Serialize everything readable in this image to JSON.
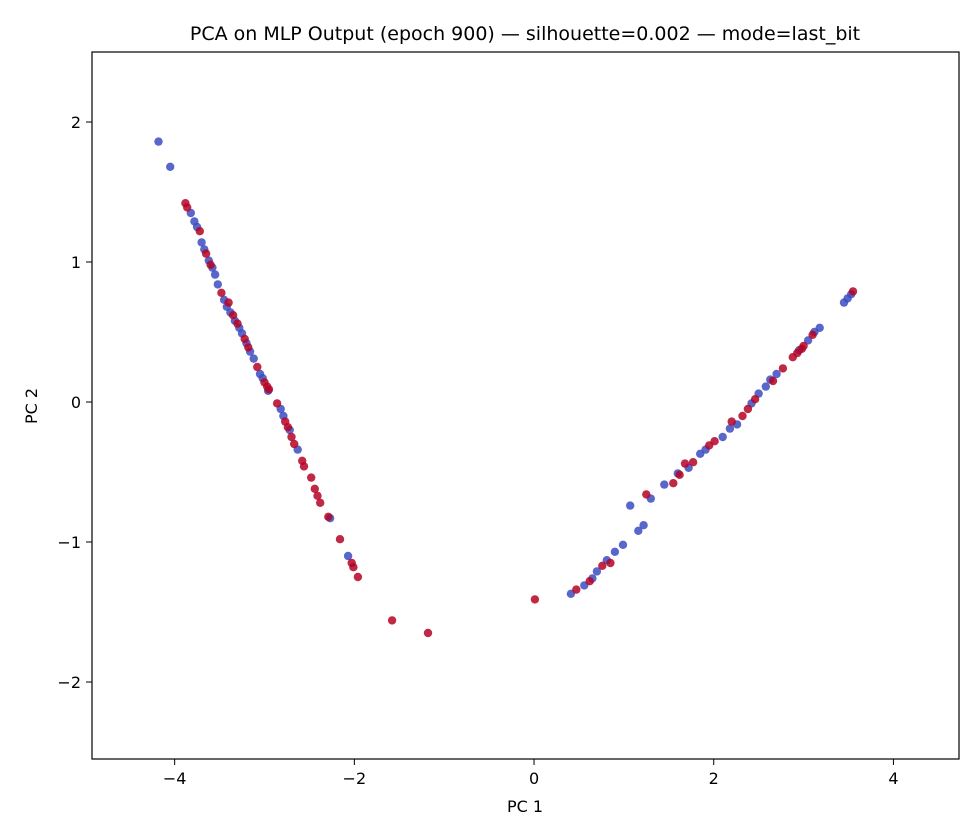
{
  "chart_data": {
    "type": "scatter",
    "title": "PCA on MLP Output (epoch 900) — silhouette=0.002 — mode=last_bit",
    "xlabel": "PC 1",
    "ylabel": "PC 2",
    "xlim": [
      -4.92,
      4.73
    ],
    "ylim": [
      -2.55,
      2.5
    ],
    "xticks": [
      -4,
      -2,
      0,
      2,
      4
    ],
    "yticks": [
      -2,
      -1,
      0,
      1,
      2
    ],
    "xtick_labels": [
      "−4",
      "−2",
      "0",
      "2",
      "4"
    ],
    "ytick_labels": [
      "−2",
      "−1",
      "0",
      "1",
      "2"
    ],
    "grid": false,
    "legend": false,
    "colors": {
      "class_0": "#3b4cc0",
      "class_1": "#b40426"
    },
    "series": [
      {
        "color_key": "class_0",
        "points": [
          [
            -4.18,
            1.86
          ],
          [
            -4.05,
            1.68
          ],
          [
            -3.82,
            1.35
          ],
          [
            -3.78,
            1.29
          ],
          [
            -3.75,
            1.25
          ],
          [
            -3.7,
            1.14
          ],
          [
            -3.67,
            1.09
          ],
          [
            -3.62,
            1.01
          ],
          [
            -3.58,
            0.96
          ],
          [
            -3.55,
            0.91
          ],
          [
            -3.52,
            0.84
          ],
          [
            -3.45,
            0.73
          ],
          [
            -3.42,
            0.68
          ],
          [
            -3.38,
            0.64
          ],
          [
            -3.33,
            0.58
          ],
          [
            -3.28,
            0.53
          ],
          [
            -3.25,
            0.49
          ],
          [
            -3.2,
            0.42
          ],
          [
            -3.16,
            0.36
          ],
          [
            -3.12,
            0.31
          ],
          [
            -3.05,
            0.2
          ],
          [
            -3.02,
            0.17
          ],
          [
            -2.96,
            0.08
          ],
          [
            -2.82,
            -0.05
          ],
          [
            -2.79,
            -0.1
          ],
          [
            -2.72,
            -0.2
          ],
          [
            -2.63,
            -0.34
          ],
          [
            -2.27,
            -0.83
          ],
          [
            -2.07,
            -1.1
          ],
          [
            0.41,
            -1.37
          ],
          [
            0.56,
            -1.31
          ],
          [
            0.65,
            -1.26
          ],
          [
            0.7,
            -1.21
          ],
          [
            0.81,
            -1.13
          ],
          [
            0.9,
            -1.07
          ],
          [
            0.99,
            -1.02
          ],
          [
            1.07,
            -0.74
          ],
          [
            1.16,
            -0.92
          ],
          [
            1.22,
            -0.88
          ],
          [
            1.3,
            -0.69
          ],
          [
            1.45,
            -0.59
          ],
          [
            1.6,
            -0.51
          ],
          [
            1.72,
            -0.47
          ],
          [
            1.85,
            -0.37
          ],
          [
            1.91,
            -0.34
          ],
          [
            2.1,
            -0.25
          ],
          [
            2.18,
            -0.19
          ],
          [
            2.26,
            -0.16
          ],
          [
            2.42,
            -0.01
          ],
          [
            2.5,
            0.06
          ],
          [
            2.58,
            0.11
          ],
          [
            2.63,
            0.16
          ],
          [
            2.7,
            0.2
          ],
          [
            2.95,
            0.37
          ],
          [
            3.05,
            0.44
          ],
          [
            3.12,
            0.5
          ],
          [
            3.18,
            0.53
          ],
          [
            3.45,
            0.71
          ],
          [
            3.49,
            0.74
          ],
          [
            3.53,
            0.77
          ]
        ]
      },
      {
        "color_key": "class_1",
        "points": [
          [
            -3.88,
            1.42
          ],
          [
            -3.86,
            1.39
          ],
          [
            -3.72,
            1.22
          ],
          [
            -3.65,
            1.06
          ],
          [
            -3.6,
            0.98
          ],
          [
            -3.48,
            0.78
          ],
          [
            -3.4,
            0.71
          ],
          [
            -3.35,
            0.62
          ],
          [
            -3.3,
            0.56
          ],
          [
            -3.22,
            0.45
          ],
          [
            -3.18,
            0.39
          ],
          [
            -3.08,
            0.25
          ],
          [
            -3.0,
            0.14
          ],
          [
            -2.97,
            0.11
          ],
          [
            -2.95,
            0.09
          ],
          [
            -2.86,
            -0.01
          ],
          [
            -2.77,
            -0.14
          ],
          [
            -2.74,
            -0.18
          ],
          [
            -2.7,
            -0.25
          ],
          [
            -2.67,
            -0.3
          ],
          [
            -2.58,
            -0.42
          ],
          [
            -2.56,
            -0.46
          ],
          [
            -2.48,
            -0.54
          ],
          [
            -2.44,
            -0.62
          ],
          [
            -2.41,
            -0.67
          ],
          [
            -2.38,
            -0.72
          ],
          [
            -2.29,
            -0.82
          ],
          [
            -2.16,
            -0.98
          ],
          [
            -2.03,
            -1.15
          ],
          [
            -2.01,
            -1.18
          ],
          [
            -1.96,
            -1.25
          ],
          [
            -1.58,
            -1.56
          ],
          [
            -1.18,
            -1.65
          ],
          [
            0.01,
            -1.41
          ],
          [
            0.47,
            -1.34
          ],
          [
            0.62,
            -1.28
          ],
          [
            0.76,
            -1.17
          ],
          [
            0.85,
            -1.15
          ],
          [
            1.25,
            -0.66
          ],
          [
            1.55,
            -0.58
          ],
          [
            1.62,
            -0.52
          ],
          [
            1.68,
            -0.44
          ],
          [
            1.77,
            -0.43
          ],
          [
            1.95,
            -0.31
          ],
          [
            2.01,
            -0.28
          ],
          [
            2.2,
            -0.14
          ],
          [
            2.32,
            -0.1
          ],
          [
            2.38,
            -0.05
          ],
          [
            2.46,
            0.02
          ],
          [
            2.66,
            0.15
          ],
          [
            2.77,
            0.24
          ],
          [
            2.88,
            0.32
          ],
          [
            2.93,
            0.35
          ],
          [
            2.98,
            0.38
          ],
          [
            3.0,
            0.4
          ],
          [
            3.1,
            0.48
          ],
          [
            3.55,
            0.79
          ]
        ]
      }
    ]
  }
}
